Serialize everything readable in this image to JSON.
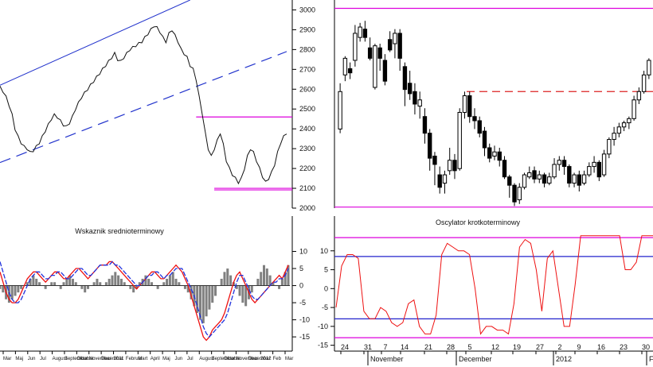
{
  "chart_data": [
    {
      "type": "line",
      "panel": "price",
      "title": "",
      "ylim": [
        2000,
        3050
      ],
      "yticks": [
        3000,
        2900,
        2800,
        2700,
        2600,
        2500,
        2400,
        2300,
        2200,
        2100,
        2000
      ],
      "close": [
        2610,
        2590,
        2560,
        2520,
        2470,
        2400,
        2360,
        2330,
        2310,
        2300,
        2280,
        2290,
        2310,
        2330,
        2360,
        2390,
        2420,
        2450,
        2470,
        2460,
        2440,
        2420,
        2410,
        2430,
        2460,
        2500,
        2530,
        2560,
        2580,
        2600,
        2620,
        2640,
        2660,
        2680,
        2700,
        2720,
        2740,
        2760,
        2780,
        2750,
        2740,
        2760,
        2780,
        2800,
        2810,
        2820,
        2830,
        2840,
        2860,
        2880,
        2900,
        2920,
        2910,
        2890,
        2860,
        2840,
        2880,
        2900,
        2870,
        2840,
        2800,
        2780,
        2760,
        2720,
        2700,
        2650,
        2560,
        2480,
        2380,
        2300,
        2260,
        2300,
        2340,
        2380,
        2320,
        2240,
        2200,
        2170,
        2150,
        2130,
        2150,
        2200,
        2260,
        2300,
        2280,
        2240,
        2200,
        2160,
        2130,
        2150,
        2180,
        2220,
        2280,
        2330,
        2360,
        2380
      ],
      "trend_channel": {
        "upper": [
          [
            0,
            2620
          ],
          [
            63,
            3050
          ]
        ],
        "lower_dashed": [
          [
            0,
            2230
          ],
          [
            95,
            2790
          ]
        ]
      },
      "hlines_magenta": [
        2460,
        2100,
        2092
      ]
    },
    {
      "type": "line",
      "panel": "indicator",
      "title": "Wskaznik srednioterminowy",
      "ylim": [
        -18,
        15
      ],
      "yticks": [
        10,
        5,
        0,
        -5,
        -10,
        -15
      ],
      "histogram": [
        -1,
        -2,
        -4,
        -5,
        -4,
        -3,
        -2,
        -1,
        0,
        1,
        2,
        3,
        2,
        1,
        0,
        -1,
        0,
        1,
        1,
        0,
        -1,
        1,
        2,
        3,
        2,
        1,
        0,
        -1,
        -2,
        -1,
        0,
        1,
        2,
        1,
        0,
        1,
        2,
        3,
        4,
        3,
        2,
        1,
        0,
        -1,
        -2,
        -1,
        1,
        2,
        3,
        2,
        1,
        0,
        -1,
        0,
        1,
        2,
        3,
        4,
        2,
        1,
        0,
        -1,
        -2,
        -4,
        -6,
        -8,
        -10,
        -11,
        -9,
        -7,
        -5,
        -3,
        0,
        2,
        4,
        5,
        3,
        1,
        -1,
        -3,
        -5,
        -6,
        -4,
        -2,
        0,
        2,
        4,
        6,
        5,
        3,
        1,
        0,
        -1,
        2,
        4,
        6
      ],
      "series": [
        {
          "name": "",
          "color": "#ee1111",
          "values": [
            4,
            1,
            -2,
            -4,
            -5,
            -5,
            -4,
            -2,
            0,
            2,
            3,
            4,
            4,
            3,
            2,
            1,
            2,
            3,
            4,
            4,
            3,
            2,
            2,
            3,
            4,
            5,
            5,
            4,
            3,
            2,
            3,
            4,
            5,
            6,
            6,
            6,
            7,
            7,
            6,
            5,
            4,
            3,
            2,
            1,
            0,
            -1,
            0,
            1,
            2,
            3,
            4,
            4,
            3,
            2,
            2,
            3,
            4,
            5,
            6,
            5,
            4,
            2,
            0,
            -3,
            -6,
            -9,
            -12,
            -15,
            -16,
            -15,
            -13,
            -12,
            -11,
            -10,
            -8,
            -5,
            -2,
            1,
            3,
            4,
            2,
            0,
            -2,
            -4,
            -5,
            -4,
            -3,
            -2,
            -1,
            0,
            1,
            2,
            3,
            2,
            4,
            6
          ]
        },
        {
          "name": "",
          "color": "#2233dd",
          "values": [
            7,
            4,
            1,
            -2,
            -4,
            -5,
            -5,
            -4,
            -2,
            0,
            2,
            3,
            4,
            4,
            3,
            2,
            2,
            3,
            3,
            4,
            4,
            3,
            2,
            2,
            3,
            4,
            5,
            5,
            4,
            3,
            3,
            4,
            5,
            6,
            6,
            6,
            6,
            7,
            6,
            6,
            5,
            4,
            3,
            2,
            1,
            0,
            0,
            1,
            2,
            3,
            3,
            4,
            4,
            3,
            2,
            3,
            3,
            4,
            5,
            5,
            5,
            3,
            1,
            -1,
            -3,
            -6,
            -9,
            -12,
            -14,
            -15,
            -14,
            -13,
            -12,
            -11,
            -10,
            -8,
            -5,
            -2,
            1,
            3,
            3,
            1,
            -1,
            -3,
            -4,
            -4,
            -3,
            -2,
            -1,
            0,
            1,
            1,
            2,
            2,
            3,
            5
          ]
        }
      ],
      "xticks": [
        "Mar",
        "Maj",
        "Jun",
        "Jul",
        "August",
        "Septembar",
        "Oktobar",
        "Novembar",
        "Decembar",
        "2011",
        "Februar",
        "Mart",
        "April",
        "Maj",
        "Jun",
        "Jul",
        "August",
        "Septembar",
        "Oktobar",
        "Novembar",
        "Decembar",
        "2012",
        "Feb",
        "Mar"
      ]
    },
    {
      "type": "bar",
      "panel": "candles",
      "title": "",
      "ylim": [
        2040,
        3040
      ],
      "candles": [
        [
          2420,
          2600,
          2640,
          2400
        ],
        [
          2680,
          2760,
          2770,
          2650
        ],
        [
          2710,
          2690,
          2740,
          2660
        ],
        [
          2750,
          2880,
          2920,
          2720
        ],
        [
          2860,
          2910,
          2930,
          2840
        ],
        [
          2900,
          2860,
          2940,
          2840
        ],
        [
          2810,
          2760,
          2860,
          2750
        ],
        [
          2620,
          2820,
          2830,
          2610
        ],
        [
          2810,
          2760,
          2830,
          2700
        ],
        [
          2750,
          2650,
          2780,
          2630
        ],
        [
          2850,
          2800,
          2890,
          2790
        ],
        [
          2830,
          2880,
          2900,
          2760
        ],
        [
          2880,
          2760,
          2900,
          2700
        ],
        [
          2720,
          2610,
          2740,
          2530
        ],
        [
          2640,
          2590,
          2700,
          2560
        ],
        [
          2600,
          2540,
          2640,
          2490
        ],
        [
          2530,
          2560,
          2600,
          2470
        ],
        [
          2480,
          2400,
          2520,
          2350
        ],
        [
          2400,
          2280,
          2420,
          2220
        ],
        [
          2290,
          2250,
          2310,
          2150
        ],
        [
          2200,
          2140,
          2240,
          2110
        ],
        [
          2160,
          2200,
          2220,
          2110
        ],
        [
          2220,
          2270,
          2330,
          2200
        ],
        [
          2270,
          2220,
          2300,
          2180
        ],
        [
          2230,
          2500,
          2520,
          2220
        ],
        [
          2500,
          2580,
          2600,
          2470
        ],
        [
          2580,
          2480,
          2600,
          2450
        ],
        [
          2480,
          2460,
          2520,
          2420
        ],
        [
          2460,
          2400,
          2480,
          2380
        ],
        [
          2410,
          2330,
          2430,
          2290
        ],
        [
          2330,
          2280,
          2350,
          2260
        ],
        [
          2290,
          2310,
          2340,
          2270
        ],
        [
          2310,
          2270,
          2330,
          2240
        ],
        [
          2270,
          2190,
          2290,
          2180
        ],
        [
          2190,
          2150,
          2200,
          2090
        ],
        [
          2150,
          2070,
          2160,
          2050
        ],
        [
          2080,
          2140,
          2160,
          2060
        ],
        [
          2140,
          2200,
          2210,
          2130
        ],
        [
          2190,
          2210,
          2240,
          2180
        ],
        [
          2220,
          2180,
          2240,
          2160
        ],
        [
          2180,
          2200,
          2220,
          2160
        ],
        [
          2200,
          2160,
          2210,
          2140
        ],
        [
          2160,
          2190,
          2210,
          2150
        ],
        [
          2190,
          2250,
          2280,
          2180
        ],
        [
          2250,
          2270,
          2290,
          2220
        ],
        [
          2270,
          2240,
          2290,
          2200
        ],
        [
          2240,
          2160,
          2250,
          2140
        ],
        [
          2160,
          2200,
          2210,
          2140
        ],
        [
          2200,
          2150,
          2220,
          2120
        ],
        [
          2160,
          2200,
          2220,
          2150
        ],
        [
          2200,
          2240,
          2260,
          2190
        ],
        [
          2240,
          2260,
          2290,
          2210
        ],
        [
          2260,
          2190,
          2270,
          2170
        ],
        [
          2200,
          2300,
          2320,
          2190
        ],
        [
          2300,
          2370,
          2380,
          2280
        ],
        [
          2370,
          2400,
          2430,
          2340
        ],
        [
          2400,
          2430,
          2450,
          2380
        ],
        [
          2430,
          2450,
          2460,
          2410
        ],
        [
          2450,
          2470,
          2480,
          2420
        ],
        [
          2470,
          2560,
          2580,
          2460
        ],
        [
          2560,
          2600,
          2620,
          2540
        ],
        [
          2600,
          2680,
          2700,
          2590
        ],
        [
          2680,
          2750,
          2760,
          2660
        ]
      ],
      "hlines_magenta": [
        3000,
        2045
      ],
      "dashed_red_level": 2600,
      "xticks_days": [
        "24",
        "31",
        "7",
        "14",
        "21",
        "28",
        "5",
        "12",
        "19",
        "27",
        "2",
        "9",
        "16",
        "23",
        "30"
      ],
      "xticks_months": [
        "November",
        "December",
        "2012",
        "F"
      ]
    },
    {
      "type": "line",
      "panel": "oscillator",
      "title": "Oscylator krotkoterminowy",
      "ylim": [
        -15.5,
        15
      ],
      "yticks": [
        10,
        5,
        0,
        -5,
        -10,
        -15
      ],
      "series": [
        {
          "name": "",
          "color": "#ee1111",
          "values": [
            -5,
            6,
            9,
            9,
            8,
            -6,
            -8,
            -8,
            -5,
            -6,
            -9,
            -10,
            -9,
            -4,
            -3,
            -10,
            -12,
            -12,
            -7,
            9,
            12,
            11,
            10,
            10,
            9,
            0,
            -12,
            -10,
            -10,
            -11,
            -11,
            -12,
            -4,
            11,
            13,
            12,
            5,
            -6,
            8,
            10,
            0,
            -10,
            -10,
            1,
            14,
            14,
            14,
            14,
            14,
            14,
            14,
            14,
            5,
            5,
            7,
            14,
            14,
            14
          ]
        }
      ],
      "hlines": [
        {
          "value": 13.5,
          "color": "#dd00dd"
        },
        {
          "value": 8.5,
          "color": "#2222cc"
        },
        {
          "value": -8,
          "color": "#2222cc"
        },
        {
          "value": -13,
          "color": "#dd00dd"
        }
      ]
    }
  ]
}
